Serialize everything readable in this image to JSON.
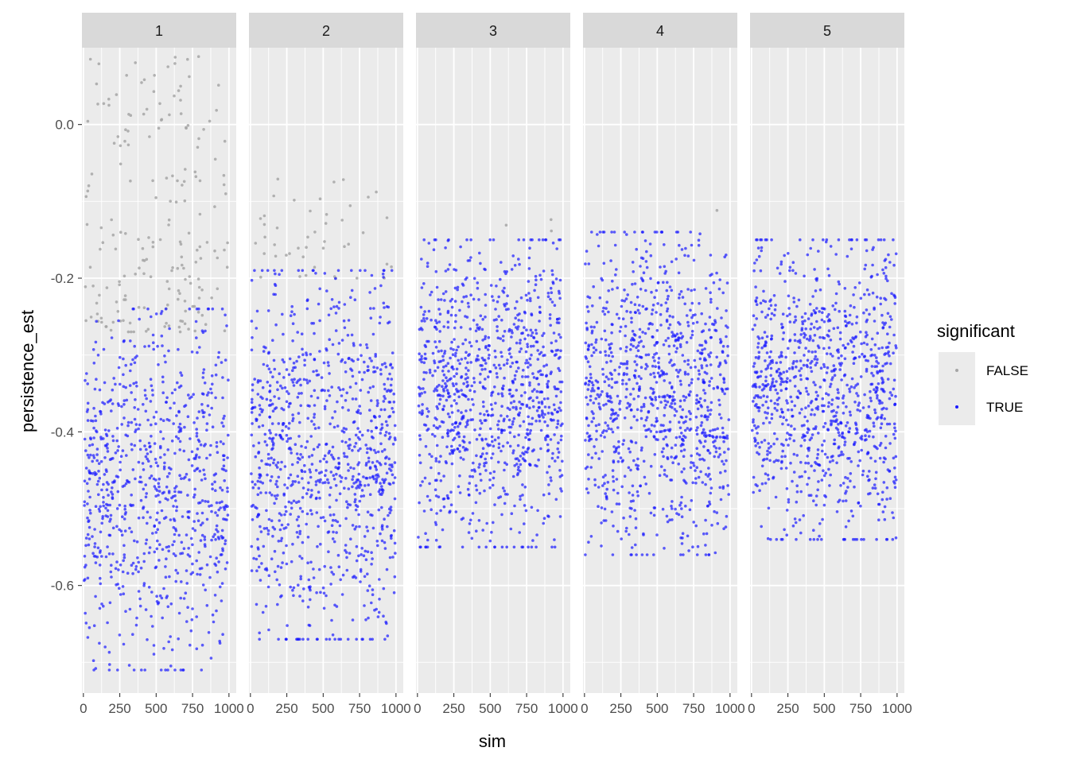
{
  "chart_data": {
    "type": "scatter",
    "xlabel": "sim",
    "ylabel": "persistence_est",
    "xlim": [
      -10,
      1050
    ],
    "ylim": [
      -0.74,
      0.1
    ],
    "x_ticks": [
      0,
      250,
      500,
      750,
      1000
    ],
    "x_tick_labels": [
      "0",
      "250",
      "500",
      "750",
      "1000"
    ],
    "y_ticks": [
      0.0,
      -0.2,
      -0.4,
      -0.6
    ],
    "y_tick_labels": [
      "0.0",
      "-0.2",
      "-0.4",
      "-0.6"
    ],
    "grid": true,
    "facets": [
      {
        "label": "1",
        "false_upper": 0.09,
        "false_lower": -0.27,
        "true_upper": -0.24,
        "true_lower": -0.71,
        "n_false": 190,
        "n_true": 820
      },
      {
        "label": "2",
        "false_upper": -0.07,
        "false_lower": -0.2,
        "true_upper": -0.19,
        "true_lower": -0.67,
        "n_false": 45,
        "n_true": 960
      },
      {
        "label": "3",
        "false_upper": -0.1,
        "false_lower": -0.15,
        "true_upper": -0.15,
        "true_lower": -0.55,
        "n_false": 3,
        "n_true": 1000
      },
      {
        "label": "4",
        "false_upper": -0.11,
        "false_lower": -0.12,
        "true_upper": -0.14,
        "true_lower": -0.56,
        "n_false": 1,
        "n_true": 1000
      },
      {
        "label": "5",
        "false_upper": -0.15,
        "false_lower": -0.15,
        "true_upper": -0.15,
        "true_lower": -0.54,
        "n_false": 0,
        "n_true": 1000
      }
    ],
    "legend": {
      "title": "significant",
      "placement": "right",
      "entries": [
        {
          "label": "FALSE",
          "color": "#a6a6a6"
        },
        {
          "label": "TRUE",
          "color": "#1a1aff"
        }
      ]
    }
  }
}
